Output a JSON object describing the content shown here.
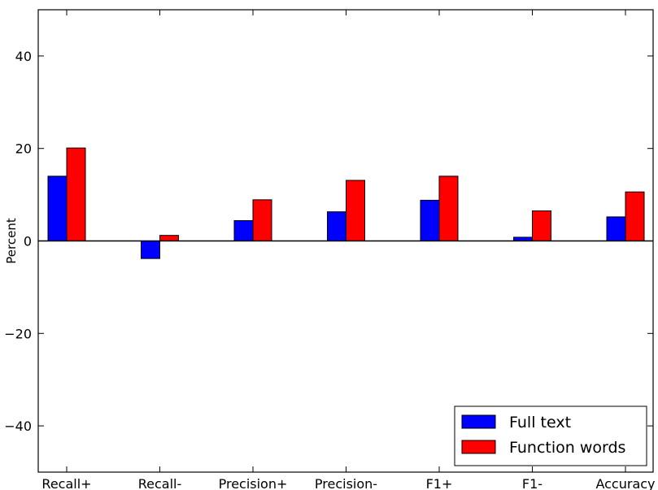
{
  "chart_data": {
    "type": "bar",
    "categories": [
      "Recall+",
      "Recall-",
      "Precision+",
      "Precision-",
      "F1+",
      "F1-",
      "Accuracy"
    ],
    "series": [
      {
        "name": "Full text",
        "color": "#0000ff",
        "values": [
          14.0,
          -3.8,
          4.4,
          6.3,
          8.8,
          0.8,
          5.2
        ]
      },
      {
        "name": "Function words",
        "color": "#ff0000",
        "values": [
          20.1,
          1.2,
          8.9,
          13.1,
          14.0,
          6.5,
          10.6
        ]
      }
    ],
    "title": "",
    "xlabel": "",
    "ylabel": "Percent",
    "ylim": [
      -50,
      50
    ],
    "yticks": [
      -40,
      -20,
      0,
      20,
      40
    ],
    "ytick_labels": [
      "−40",
      "−20",
      "0",
      "20",
      "40"
    ],
    "grid": false,
    "legend_position": "lower-right"
  }
}
